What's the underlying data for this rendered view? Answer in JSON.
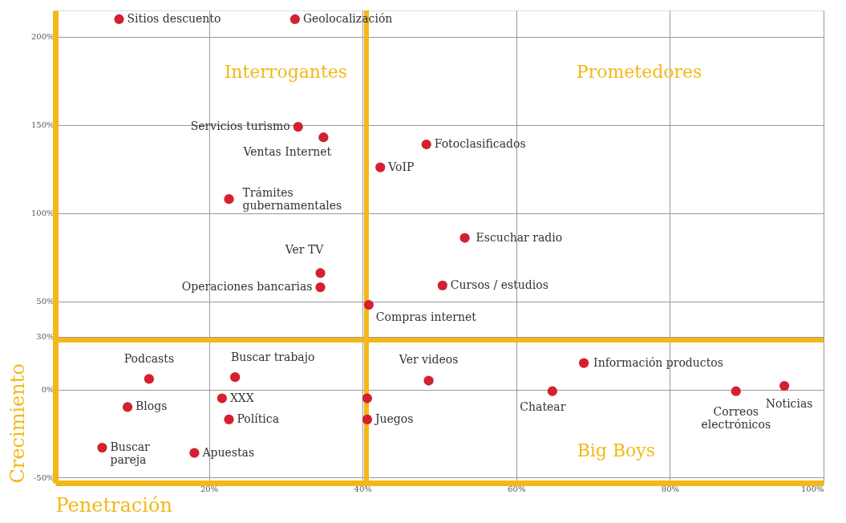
{
  "chart_data": {
    "type": "scatter",
    "xlabel": "Penetración",
    "ylabel": "Crecimiento",
    "xlim": [
      0,
      100
    ],
    "ylim": [
      -53,
      215
    ],
    "xticks": [
      {
        "value": 20,
        "label": "20%"
      },
      {
        "value": 40,
        "label": "40%"
      },
      {
        "value": 60,
        "label": "60%"
      },
      {
        "value": 80,
        "label": "80%"
      },
      {
        "value": 100,
        "label": "100%"
      }
    ],
    "yticks": [
      {
        "value": -50,
        "label": "-50%"
      },
      {
        "value": 0,
        "label": "0%"
      },
      {
        "value": 30,
        "label": "30%"
      },
      {
        "value": 50,
        "label": "50%"
      },
      {
        "value": 100,
        "label": "100%"
      },
      {
        "value": 150,
        "label": "150%"
      },
      {
        "value": 200,
        "label": "200%"
      }
    ],
    "grid": true,
    "legend": false,
    "marker": "circle",
    "ref_lines": [
      {
        "axis": "x",
        "value": 40.5,
        "color": "#f2b817"
      },
      {
        "axis": "y",
        "value": 28,
        "color": "#f2b817"
      }
    ],
    "annotations": [
      "Interrogantes",
      "Prometedores",
      "Big Boys"
    ],
    "series": [
      {
        "name": "Sitios descuento",
        "color": "#d42030",
        "x": [
          8.3
        ],
        "values": [
          210
        ]
      },
      {
        "name": "Geolocalización",
        "color": "#d42030",
        "x": [
          31.2
        ],
        "values": [
          210
        ]
      },
      {
        "name": "Servicios turismo",
        "color": "#d42030",
        "x": [
          31.6
        ],
        "values": [
          149
        ]
      },
      {
        "name": "Ventas Internet",
        "color": "#d42030",
        "x": [
          34.9
        ],
        "values": [
          143
        ]
      },
      {
        "name": "Fotoclasificados",
        "color": "#d42030",
        "x": [
          48.3
        ],
        "values": [
          139
        ]
      },
      {
        "name": "VoIP",
        "color": "#d42030",
        "x": [
          42.3
        ],
        "values": [
          126
        ]
      },
      {
        "name": "Trámites gubernamentales",
        "color": "#d42030",
        "x": [
          22.6
        ],
        "values": [
          108
        ]
      },
      {
        "name": "Escuchar radio",
        "color": "#d42030",
        "x": [
          53.3
        ],
        "values": [
          86
        ]
      },
      {
        "name": "Ver TV",
        "color": "#d42030",
        "x": [
          34.5
        ],
        "values": [
          66
        ]
      },
      {
        "name": "Operaciones bancarias",
        "color": "#d42030",
        "x": [
          34.5
        ],
        "values": [
          58
        ]
      },
      {
        "name": "Cursos / estudios",
        "color": "#d42030",
        "x": [
          50.4
        ],
        "values": [
          59
        ]
      },
      {
        "name": "Compras internet",
        "color": "#d42030",
        "x": [
          40.8
        ],
        "values": [
          48
        ]
      },
      {
        "name": "Podcasts",
        "color": "#d42030",
        "x": [
          12.2
        ],
        "values": [
          6
        ]
      },
      {
        "name": "Buscar trabajo",
        "color": "#d42030",
        "x": [
          23.4
        ],
        "values": [
          7
        ]
      },
      {
        "name": "Ver videos",
        "color": "#d42030",
        "x": [
          48.6
        ],
        "values": [
          5
        ]
      },
      {
        "name": "Información productos",
        "color": "#d42030",
        "x": [
          68.8
        ],
        "values": [
          15
        ]
      },
      {
        "name": "Chatear",
        "color": "#d42030",
        "x": [
          64.7
        ],
        "values": [
          -1
        ]
      },
      {
        "name": "Noticias",
        "color": "#d42030",
        "x": [
          94.9
        ],
        "values": [
          2
        ]
      },
      {
        "name": "Correos electrónicos",
        "color": "#d42030",
        "x": [
          88.6
        ],
        "values": [
          -1
        ]
      },
      {
        "name": "Blogs",
        "color": "#d42030",
        "x": [
          9.4
        ],
        "values": [
          -10
        ]
      },
      {
        "name": "XXX",
        "color": "#d42030",
        "x": [
          21.7
        ],
        "values": [
          -5
        ]
      },
      {
        "color": "#d42030",
        "x": [
          40.6
        ],
        "values": [
          -5
        ]
      },
      {
        "name": "Política",
        "color": "#d42030",
        "x": [
          22.6
        ],
        "values": [
          -17
        ]
      },
      {
        "name": "Juegos",
        "color": "#d42030",
        "x": [
          40.6
        ],
        "values": [
          -17
        ]
      },
      {
        "name": "Buscar pareja",
        "color": "#d42030",
        "x": [
          6.1
        ],
        "values": [
          -33
        ]
      },
      {
        "name": "Apuestas",
        "color": "#d42030",
        "x": [
          18.1
        ],
        "values": [
          -36
        ]
      }
    ]
  }
}
